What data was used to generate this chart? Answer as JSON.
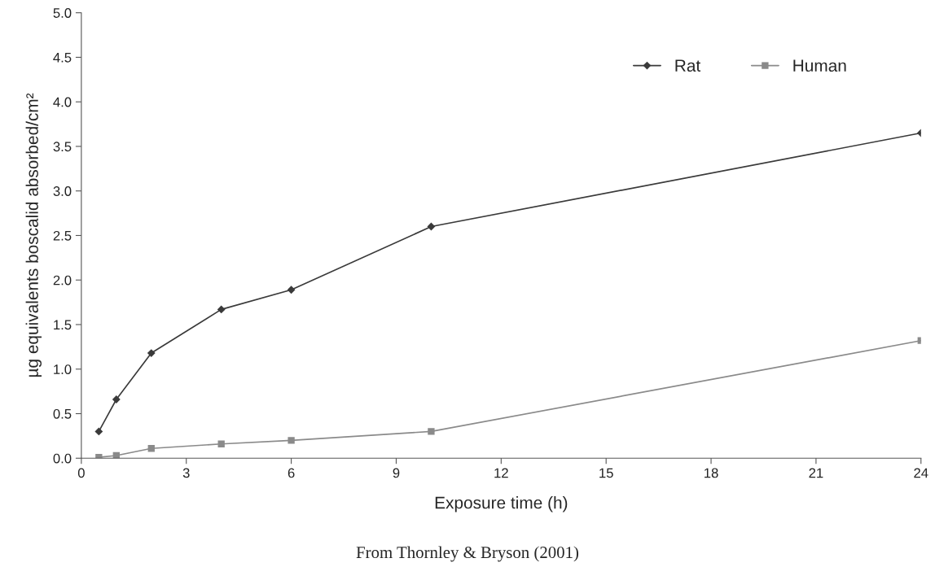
{
  "chart_data": {
    "type": "line",
    "xlabel": "Exposure time (h)",
    "ylabel": "µg equivalents boscalid absorbed/cm²",
    "x": [
      0.5,
      1,
      2,
      4,
      6,
      10,
      24
    ],
    "series": [
      {
        "name": "Rat",
        "color": "#3a3a3a",
        "marker": "diamond",
        "values": [
          0.3,
          0.66,
          1.18,
          1.67,
          1.89,
          2.6,
          3.65
        ]
      },
      {
        "name": "Human",
        "color": "#8a8a8a",
        "marker": "square",
        "values": [
          0.01,
          0.03,
          0.11,
          0.16,
          0.2,
          0.3,
          1.32
        ]
      }
    ],
    "xlim": [
      0,
      24
    ],
    "xticks": [
      0,
      3,
      6,
      9,
      12,
      15,
      18,
      21,
      24
    ],
    "ylim": [
      0,
      5
    ],
    "yticks": [
      {
        "value": 0,
        "label": "0.0"
      },
      {
        "value": 0.5,
        "label": "0.5"
      },
      {
        "value": 1,
        "label": "1.0"
      },
      {
        "value": 1.5,
        "label": "1.5"
      },
      {
        "value": 2,
        "label": "2.0"
      },
      {
        "value": 2.5,
        "label": "2.5"
      },
      {
        "value": 3,
        "label": "3.0"
      },
      {
        "value": 3.5,
        "label": "3.5"
      },
      {
        "value": 4,
        "label": "4.0"
      },
      {
        "value": 4.5,
        "label": "4.5"
      },
      {
        "value": 5,
        "label": "5.0"
      }
    ],
    "grid": false,
    "legend": "top right",
    "line_style": "solid",
    "annotations": [
      "From Thornley & Bryson (2001)"
    ]
  }
}
